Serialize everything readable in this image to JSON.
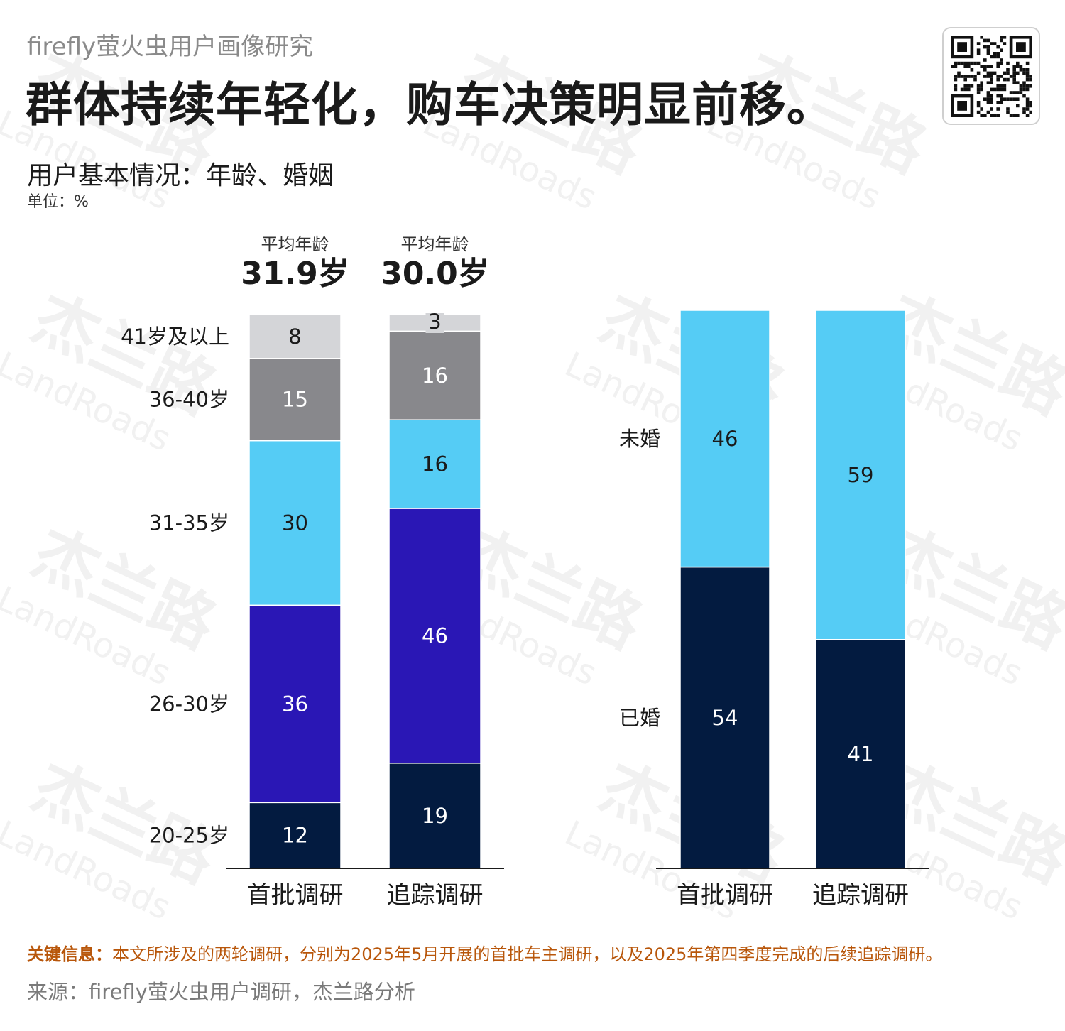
{
  "header": {
    "subtitle": "firefly萤火虫用户画像研究",
    "title": "群体持续年轻化，购车决策明显前移。"
  },
  "section": {
    "title": "用户基本情况：年龄、婚姻",
    "unit": "单位：%"
  },
  "colors": {
    "age_20_25": "#031b40",
    "age_26_30": "#2a17b5",
    "age_31_35": "#55ccf5",
    "age_36_40": "#88888c",
    "age_41_plus": "#d4d5d8",
    "married": "#031b40",
    "unmarried": "#55ccf5"
  },
  "chart_data": [
    {
      "type": "bar",
      "stacked": true,
      "title": "年龄",
      "categories": [
        "首批调研",
        "追踪调研"
      ],
      "category_annotations": [
        {
          "label": "平均年龄",
          "value": "31.9岁"
        },
        {
          "label": "平均年龄",
          "value": "30.0岁"
        }
      ],
      "series": [
        {
          "name": "20-25岁",
          "values": [
            12,
            19
          ],
          "color_key": "age_20_25",
          "text_color": "#ffffff"
        },
        {
          "name": "26-30岁",
          "values": [
            36,
            46
          ],
          "color_key": "age_26_30",
          "text_color": "#ffffff"
        },
        {
          "name": "31-35岁",
          "values": [
            30,
            16
          ],
          "color_key": "age_31_35",
          "text_color": "#1a1a1a"
        },
        {
          "name": "36-40岁",
          "values": [
            15,
            16
          ],
          "color_key": "age_36_40",
          "text_color": "#ffffff"
        },
        {
          "name": "41岁及以上",
          "values": [
            8,
            3
          ],
          "color_key": "age_41_plus",
          "text_color": "#1a1a1a"
        }
      ],
      "ylim": [
        0,
        100
      ],
      "legend": "left"
    },
    {
      "type": "bar",
      "stacked": true,
      "title": "婚姻",
      "categories": [
        "首批调研",
        "追踪调研"
      ],
      "series": [
        {
          "name": "已婚",
          "values": [
            54,
            41
          ],
          "color_key": "married",
          "text_color": "#ffffff"
        },
        {
          "name": "未婚",
          "values": [
            46,
            59
          ],
          "color_key": "unmarried",
          "text_color": "#1a1a1a"
        }
      ],
      "ylim": [
        0,
        100
      ],
      "legend": "left"
    }
  ],
  "footer": {
    "note_key": "关键信息：",
    "note_text": "本文所涉及的两轮调研，分别为2025年5月开展的首批车主调研，以及2025年第四季度完成的后续追踪调研。",
    "source": "来源：firefly萤火虫用户调研，杰兰路分析"
  },
  "watermark": {
    "cn": "杰兰路",
    "en": "LandRoads"
  }
}
